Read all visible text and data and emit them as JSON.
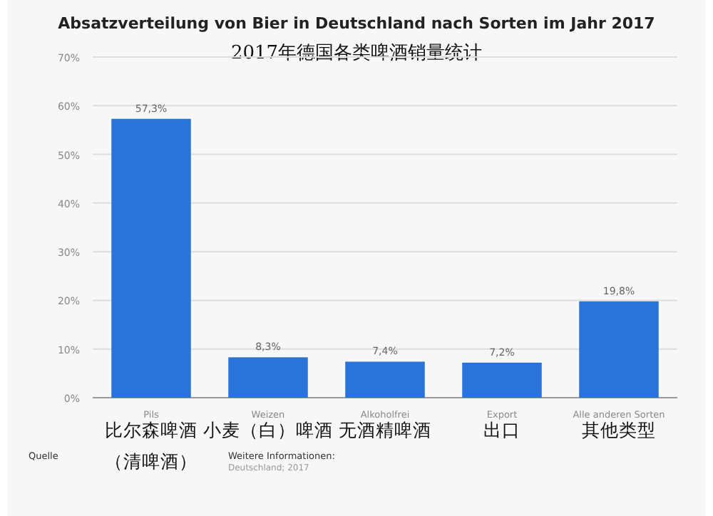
{
  "chart_data": {
    "type": "bar",
    "title": "Absatzverteilung von Bier in Deutschland nach Sorten im Jahr 2017",
    "subtitle": "2017年德国各类啤酒销量统计",
    "categories": [
      "Pils\n比尔森啤酒（清啤酒）",
      "Weizen\n小麦（白）啤酒",
      "Alkoholfrei\n无酒精啤酒",
      "Export\n出口",
      "Alle anderen Sorten\n其他类型"
    ],
    "values": [
      57.3,
      8.3,
      7.4,
      7.2,
      19.8
    ],
    "value_labels": [
      "57,3%",
      "8,3%",
      "7,4%",
      "7,2%",
      "19,8%"
    ],
    "color": "#2a74d9",
    "ylim": [
      0,
      70
    ],
    "yticks": [
      {
        "value": 0,
        "label": "0%"
      },
      {
        "value": 10,
        "label": "10%"
      },
      {
        "value": 20,
        "label": "20%"
      },
      {
        "value": 30,
        "label": "30%"
      },
      {
        "value": 40,
        "label": "40%"
      },
      {
        "value": 50,
        "label": "50%"
      },
      {
        "value": 60,
        "label": "60%"
      },
      {
        "value": 70,
        "label": "70%"
      }
    ],
    "grid": "y",
    "annotations": [
      "Quelle",
      "Weitere Informationen:",
      "Deutschland; 2017"
    ]
  }
}
